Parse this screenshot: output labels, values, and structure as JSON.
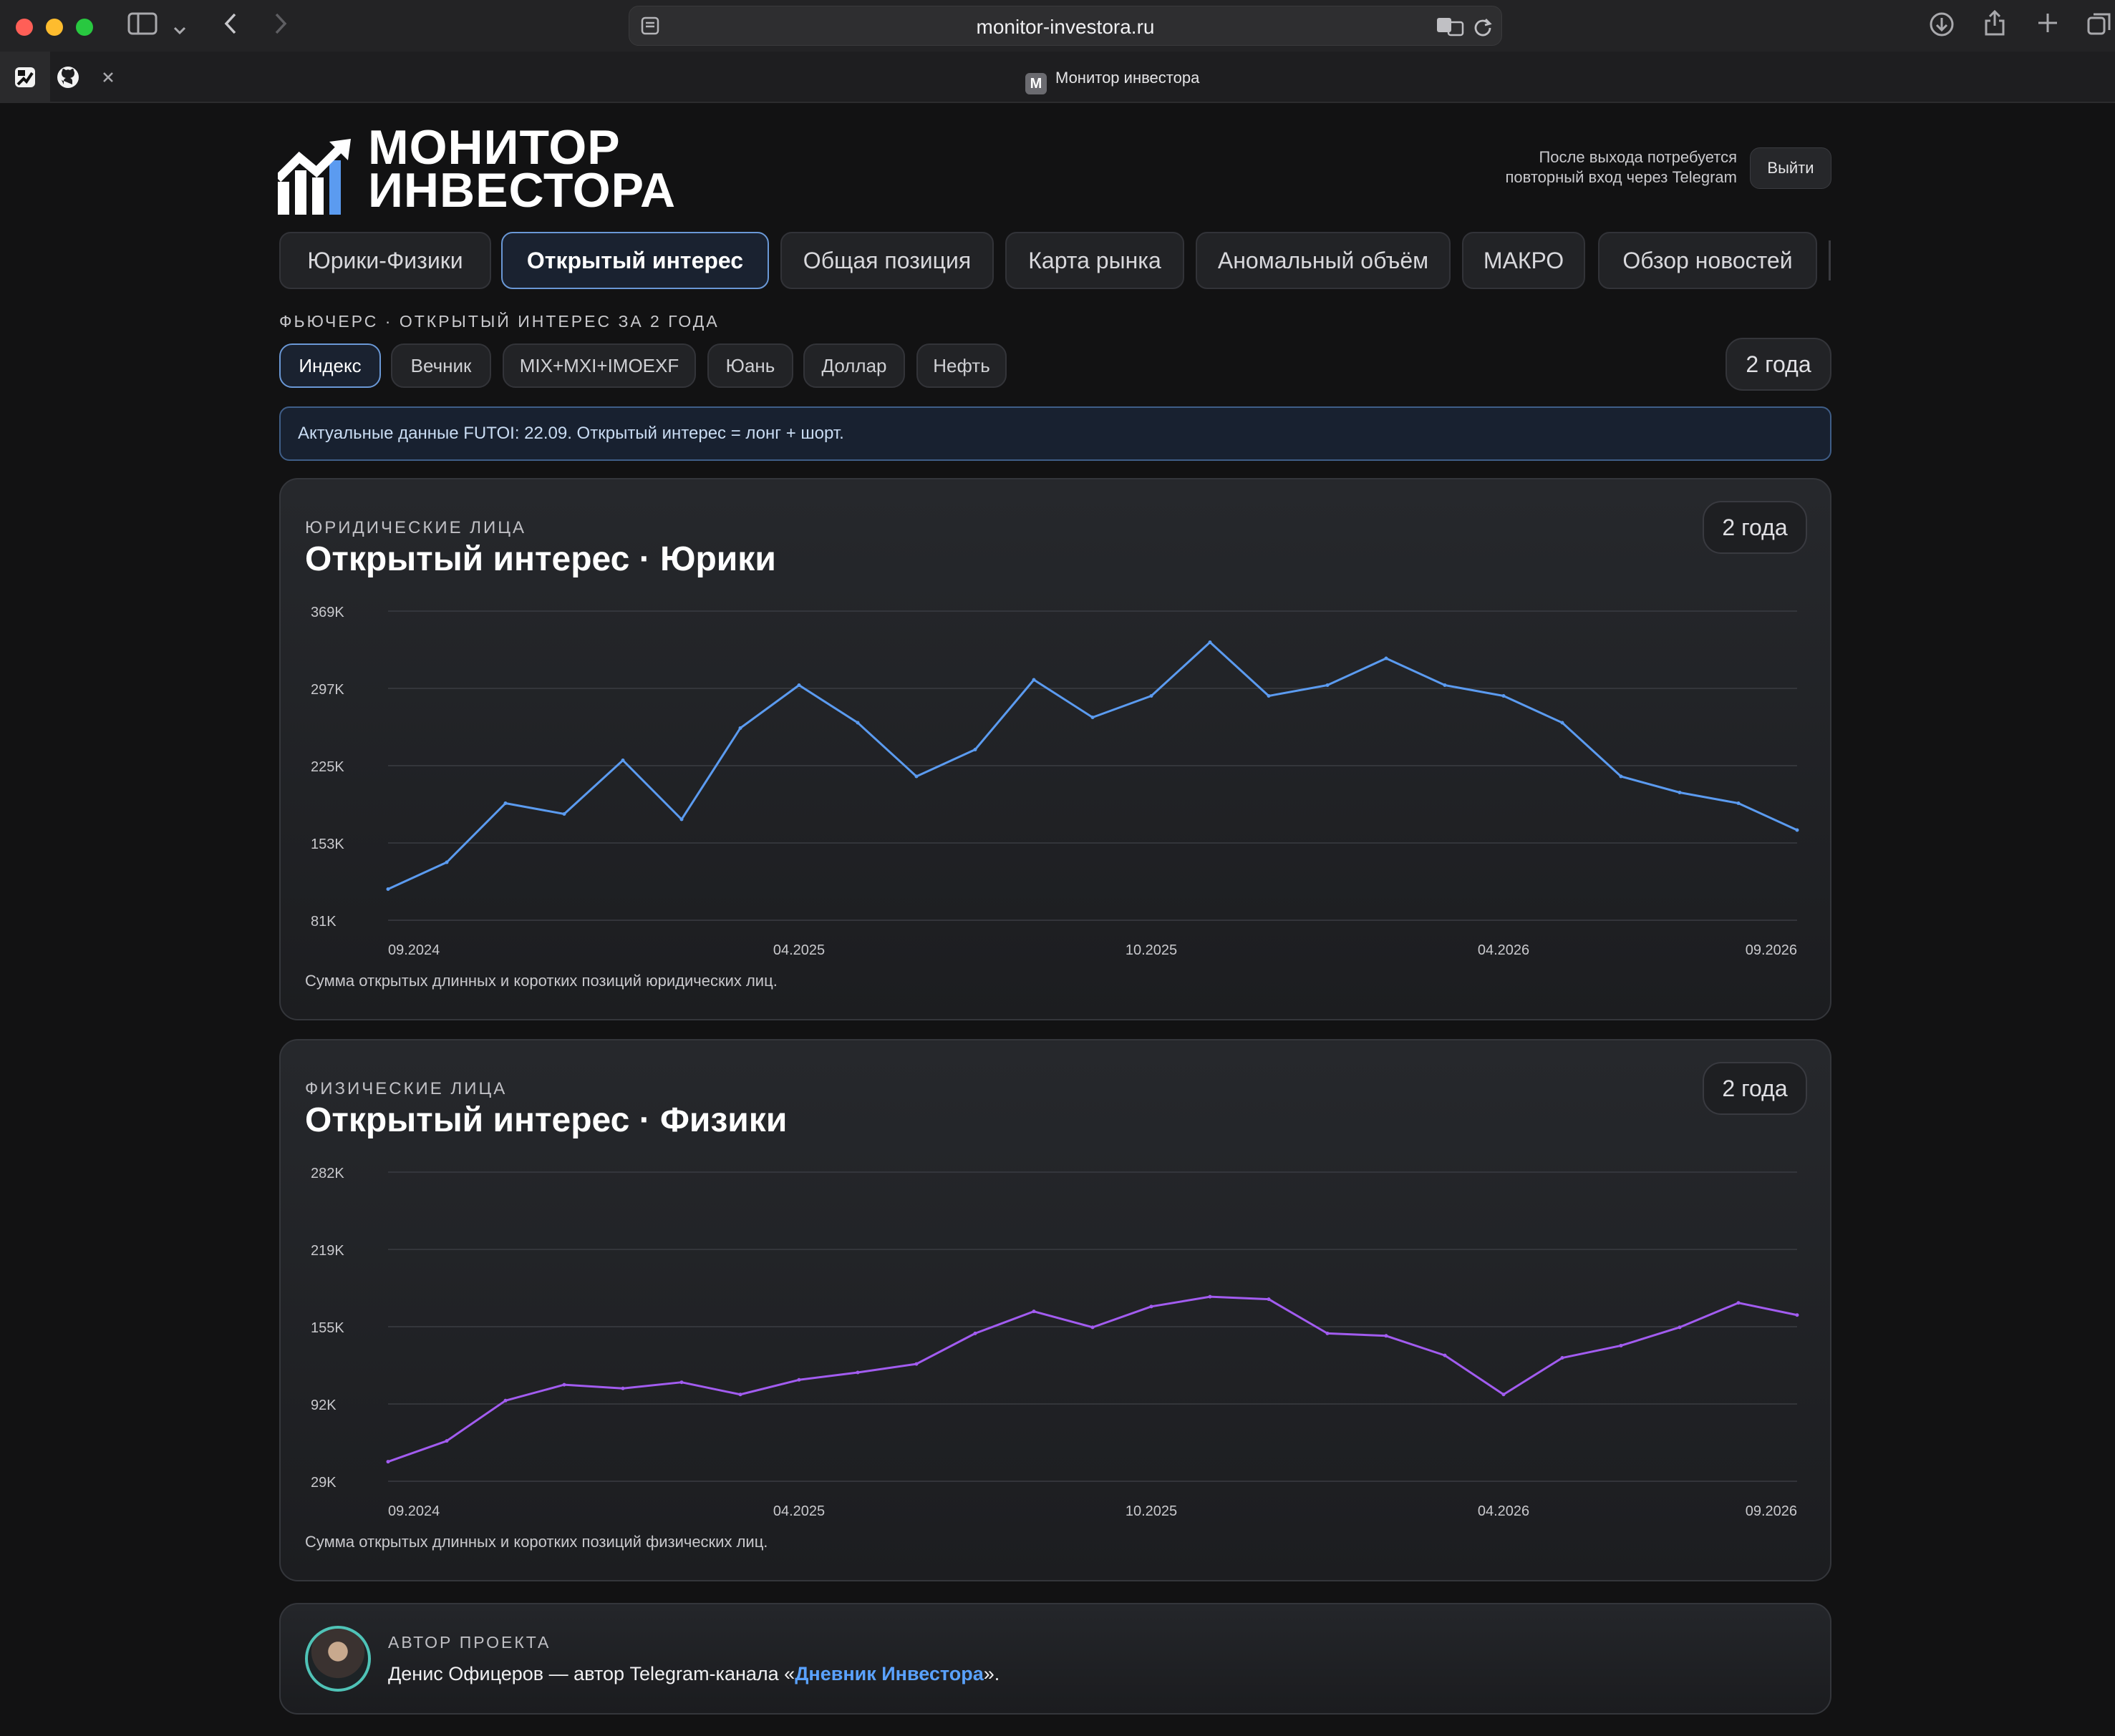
{
  "browser": {
    "url": "monitor-investora.ru",
    "tab_title": "Монитор инвестора",
    "tab_favicon_letter": "M"
  },
  "header": {
    "logo_line1": "МОНИТОР",
    "logo_line2": "ИНВЕСТОРА",
    "logout_note_line1": "После выхода потребуется",
    "logout_note_line2": "повторный вход через Telegram",
    "logout_label": "Выйти"
  },
  "nav": {
    "tabs": [
      {
        "label": "Юрики-Физики"
      },
      {
        "label": "Открытый интерес",
        "active": true
      },
      {
        "label": "Общая позиция"
      },
      {
        "label": "Карта рынка"
      },
      {
        "label": "Аномальный объём"
      },
      {
        "label": "МАКРО"
      },
      {
        "label": "Обзор новостей"
      }
    ]
  },
  "section": {
    "label": "ФЬЮЧЕРС · ОТКРЫТЫЙ ИНТЕРЕС ЗА 2 ГОДА",
    "chips": [
      {
        "label": "Индекс",
        "active": true
      },
      {
        "label": "Вечник"
      },
      {
        "label": "MIX+MXI+IMOEXF"
      },
      {
        "label": "Юань"
      },
      {
        "label": "Доллар"
      },
      {
        "label": "Нефть"
      }
    ],
    "period": "2 года",
    "notice": "Актуальные данные FUTOI: 22.09. Открытый интерес = лонг + шорт."
  },
  "cards": [
    {
      "eyebrow": "ЮРИДИЧЕСКИЕ ЛИЦА",
      "title": "Открытый интерес · Юрики",
      "period": "2 года",
      "note": "Сумма открытых длинных и коротких позиций юридических лиц."
    },
    {
      "eyebrow": "ФИЗИЧЕСКИЕ ЛИЦА",
      "title": "Открытый интерес · Физики",
      "period": "2 года",
      "note": "Сумма открытых длинных и коротких позиций физических лиц."
    }
  ],
  "chart_data": [
    {
      "type": "line",
      "title": "Открытый интерес · Юрики",
      "x": [
        "09.2024",
        "10.2024",
        "11.2024",
        "12.2024",
        "01.2025",
        "02.2025",
        "03.2025",
        "04.2025",
        "05.2025",
        "06.2025",
        "07.2025",
        "08.2025",
        "09.2025",
        "10.2025",
        "11.2025",
        "12.2025",
        "01.2026",
        "02.2026",
        "03.2026",
        "04.2026",
        "05.2026",
        "06.2026",
        "07.2026",
        "08.2026",
        "09.2026"
      ],
      "x_ticks": [
        "09.2024",
        "04.2025",
        "10.2025",
        "04.2026",
        "09.2026"
      ],
      "y_ticks": [
        "81K",
        "153K",
        "225K",
        "297K",
        "369K"
      ],
      "ylim": [
        81000,
        369000
      ],
      "series": [
        {
          "color": "#5b9bf0",
          "values": [
            110000,
            135000,
            190000,
            180000,
            230000,
            175000,
            260000,
            300000,
            265000,
            215000,
            240000,
            305000,
            270000,
            290000,
            340000,
            290000,
            300000,
            325000,
            300000,
            290000,
            265000,
            215000,
            200000,
            190000,
            165000
          ]
        }
      ],
      "grid": true
    },
    {
      "type": "line",
      "title": "Открытый интерес · Физики",
      "x": [
        "09.2024",
        "10.2024",
        "11.2024",
        "12.2024",
        "01.2025",
        "02.2025",
        "03.2025",
        "04.2025",
        "05.2025",
        "06.2025",
        "07.2025",
        "08.2025",
        "09.2025",
        "10.2025",
        "11.2025",
        "12.2025",
        "01.2026",
        "02.2026",
        "03.2026",
        "04.2026",
        "05.2026",
        "06.2026",
        "07.2026",
        "08.2026",
        "09.2026"
      ],
      "x_ticks": [
        "09.2024",
        "04.2025",
        "10.2025",
        "04.2026",
        "09.2026"
      ],
      "y_ticks": [
        "29K",
        "92K",
        "155K",
        "219K",
        "282K"
      ],
      "ylim": [
        29000,
        282000
      ],
      "series": [
        {
          "color": "#a25cf0",
          "values": [
            45000,
            62000,
            95000,
            108000,
            105000,
            110000,
            100000,
            112000,
            118000,
            125000,
            150000,
            168000,
            155000,
            172000,
            180000,
            178000,
            150000,
            148000,
            132000,
            100000,
            130000,
            140000,
            155000,
            175000,
            165000
          ]
        }
      ],
      "grid": true
    }
  ],
  "footer": {
    "label": "АВТОР ПРОЕКТА",
    "text_before": "Денис Офицеров — автор Telegram-канала «",
    "link": "Дневник Инвестора",
    "text_after": "»."
  }
}
